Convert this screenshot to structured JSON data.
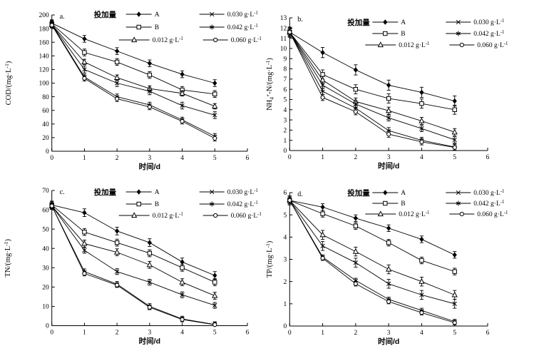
{
  "figure": {
    "background": "#ffffff",
    "ink_color": "#000000",
    "legend_title": "投加量",
    "legend_entries": [
      {
        "name": "A",
        "marker": "diamond-filled",
        "label_parts": [
          {
            "t": "A"
          }
        ]
      },
      {
        "name": "B",
        "marker": "square-open",
        "label_parts": [
          {
            "t": "B"
          }
        ]
      },
      {
        "name": "0.012 g·L-1",
        "marker": "triangle-open",
        "label_parts": [
          {
            "t": "0.012 g·L"
          },
          {
            "t": "-1",
            "pos": "sup"
          }
        ]
      },
      {
        "name": "0.030 g·L-1",
        "marker": "x-cross",
        "label_parts": [
          {
            "t": "0.030 g·L"
          },
          {
            "t": "-1",
            "pos": "sup"
          }
        ]
      },
      {
        "name": "0.042 g·L-1",
        "marker": "asterisk",
        "label_parts": [
          {
            "t": "0.042 g·L"
          },
          {
            "t": "-1",
            "pos": "sup"
          }
        ]
      },
      {
        "name": "0.060 g·L-1",
        "marker": "circle-open",
        "label_parts": [
          {
            "t": "0.060 g·L"
          },
          {
            "t": "-1",
            "pos": "sup"
          }
        ]
      }
    ]
  },
  "chart_data": [
    {
      "id": "a",
      "type": "line",
      "panel_label": "a.",
      "xlabel": "时间/d",
      "ylabel_text": "COD/(mg·L-1)",
      "ylabel_parts": [
        {
          "t": "COD/(mg·L"
        },
        {
          "t": "-1",
          "pos": "sup"
        },
        {
          "t": ")"
        }
      ],
      "xlim": [
        0,
        6
      ],
      "xtick_step": 1,
      "ylim": [
        0,
        200
      ],
      "ytick_step": 20,
      "x": [
        0,
        1,
        2,
        3,
        4,
        5
      ],
      "series": [
        {
          "name": "A",
          "values": [
            188,
            165,
            147,
            129,
            113,
            100
          ],
          "err": 5
        },
        {
          "name": "B",
          "values": [
            187,
            145,
            131,
            112,
            90,
            84
          ],
          "err": 5
        },
        {
          "name": "0.012 g·L-1",
          "values": [
            186,
            131,
            108,
            92,
            85,
            66
          ],
          "err": 4
        },
        {
          "name": "0.030 g·L-1",
          "values": [
            186,
            120,
            100,
            88,
            67,
            53
          ],
          "err": 5
        },
        {
          "name": "0.042 g·L-1",
          "values": [
            186,
            109,
            80,
            68,
            46,
            22
          ],
          "err": 4
        },
        {
          "name": "0.060 g·L-1",
          "values": [
            185,
            107,
            77,
            65,
            44,
            19
          ],
          "err": 4
        }
      ]
    },
    {
      "id": "b",
      "type": "line",
      "panel_label": "b.",
      "xlabel": "时间/d",
      "ylabel_text": "NH4+-N/(mg·L-1)",
      "ylabel_parts": [
        {
          "t": "NH"
        },
        {
          "t": "4",
          "pos": "sub"
        },
        {
          "t": "+",
          "pos": "sup"
        },
        {
          "t": "-N/(mg·L"
        },
        {
          "t": "-1",
          "pos": "sup"
        },
        {
          "t": ")"
        }
      ],
      "xlim": [
        0,
        6
      ],
      "xtick_step": 1,
      "ylim": [
        0,
        13
      ],
      "ytick_step": 1,
      "x": [
        0,
        1,
        2,
        3,
        4,
        5
      ],
      "series": [
        {
          "name": "A",
          "values": [
            11.6,
            9.6,
            7.9,
            6.4,
            5.7,
            4.85
          ],
          "err": 0.5
        },
        {
          "name": "B",
          "values": [
            11.6,
            7.45,
            6.0,
            5.1,
            4.6,
            4.0
          ],
          "err": 0.45
        },
        {
          "name": "0.012 g·L-1",
          "values": [
            11.6,
            6.9,
            4.8,
            3.9,
            2.9,
            1.8
          ],
          "err": 0.35
        },
        {
          "name": "0.030 g·L-1",
          "values": [
            11.6,
            6.4,
            4.55,
            3.2,
            2.15,
            1.05
          ],
          "err": 0.3
        },
        {
          "name": "0.042 g·L-1",
          "values": [
            11.6,
            5.8,
            4.15,
            1.95,
            1.0,
            0.35
          ],
          "err": 0.3
        },
        {
          "name": "0.060 g·L-1",
          "values": [
            11.6,
            5.2,
            3.8,
            1.6,
            0.85,
            0.3
          ],
          "err": 0.3
        }
      ]
    },
    {
      "id": "c",
      "type": "line",
      "panel_label": "c.",
      "xlabel": "时间/d",
      "ylabel_text": "TN/(mg·L-1)",
      "ylabel_parts": [
        {
          "t": "TN/(mg·L"
        },
        {
          "t": "-1",
          "pos": "sup"
        },
        {
          "t": ")"
        }
      ],
      "xlim": [
        0,
        6
      ],
      "xtick_step": 1,
      "ylim": [
        0,
        70
      ],
      "ytick_step": 10,
      "x": [
        0,
        1,
        2,
        3,
        4,
        5
      ],
      "series": [
        {
          "name": "A",
          "values": [
            62.5,
            58.5,
            49,
            43,
            33,
            26
          ],
          "err": 2
        },
        {
          "name": "B",
          "values": [
            62.5,
            48.5,
            43,
            37.5,
            30,
            22.5
          ],
          "err": 1.8
        },
        {
          "name": "0.012 g·L-1",
          "values": [
            62,
            42.5,
            38,
            31.5,
            22.5,
            15.5
          ],
          "err": 1.8
        },
        {
          "name": "0.030 g·L-1",
          "values": [
            62,
            39,
            28,
            22.5,
            16,
            10.5
          ],
          "err": 1.5
        },
        {
          "name": "0.042 g·L-1",
          "values": [
            62,
            28,
            21.5,
            10,
            3.5,
            0.6
          ],
          "err": 1.4
        },
        {
          "name": "0.060 g·L-1",
          "values": [
            62,
            27,
            21,
            9.5,
            3.2,
            0.5
          ],
          "err": 1.2
        }
      ]
    },
    {
      "id": "d",
      "type": "line",
      "panel_label": "d.",
      "xlabel": "时间/d",
      "ylabel_text": "TP/(mg·L-1)",
      "ylabel_parts": [
        {
          "t": "TP/(mg·L"
        },
        {
          "t": "-1",
          "pos": "sup"
        },
        {
          "t": ")"
        }
      ],
      "xlim": [
        0,
        6
      ],
      "xtick_step": 1,
      "ylim": [
        0,
        6
      ],
      "ytick_step": 1,
      "x": [
        0,
        1,
        2,
        3,
        4,
        5
      ],
      "series": [
        {
          "name": "A",
          "values": [
            5.65,
            5.35,
            4.85,
            4.4,
            3.9,
            3.2
          ],
          "err": 0.15
        },
        {
          "name": "B",
          "values": [
            5.65,
            5.05,
            4.5,
            3.75,
            2.95,
            2.45
          ],
          "err": 0.15
        },
        {
          "name": "0.012 g·L-1",
          "values": [
            5.65,
            4.1,
            3.35,
            2.55,
            2.0,
            1.4
          ],
          "err": 0.2
        },
        {
          "name": "0.030 g·L-1",
          "values": [
            5.65,
            3.6,
            2.85,
            1.9,
            1.4,
            1.0
          ],
          "err": 0.2
        },
        {
          "name": "0.042 g·L-1",
          "values": [
            5.65,
            3.1,
            2.05,
            1.2,
            0.7,
            0.2
          ],
          "err": 0.1
        },
        {
          "name": "0.060 g·L-1",
          "values": [
            5.65,
            3.05,
            1.9,
            1.1,
            0.6,
            0.15
          ],
          "err": 0.1
        }
      ]
    }
  ]
}
